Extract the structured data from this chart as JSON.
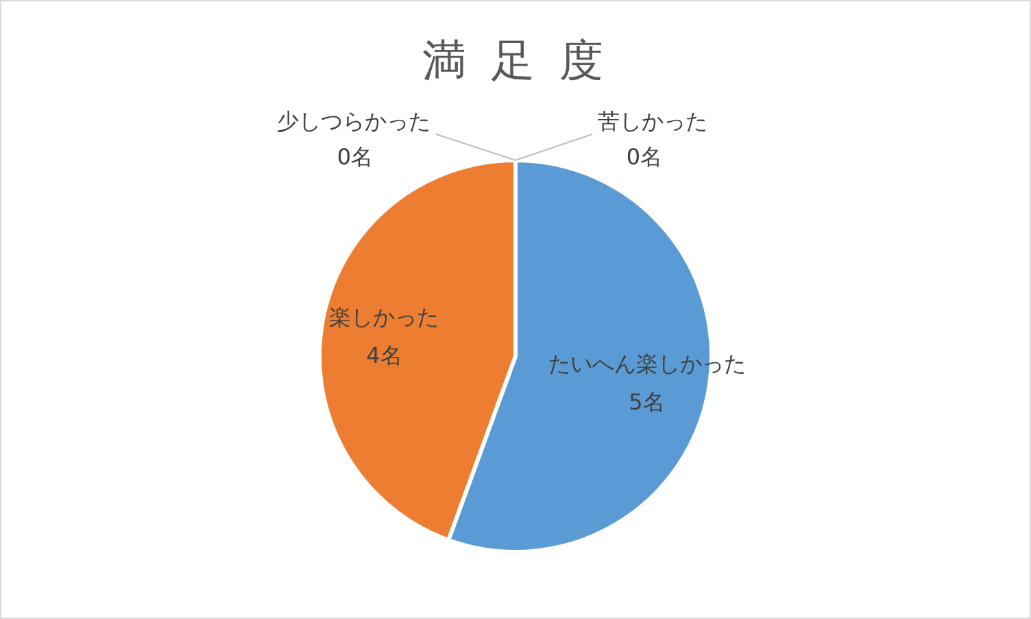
{
  "chart_data": {
    "type": "pie",
    "title": "満 足 度",
    "categories": [
      "たいへん楽しかった",
      "楽しかった",
      "少しつらかった",
      "苦しかった"
    ],
    "values": [
      5,
      4,
      0,
      0
    ],
    "colors": [
      "#5b9bd5",
      "#ed7d31",
      "#a5a5a5",
      "#ffc000"
    ],
    "value_labels": [
      "5名",
      "4名",
      "0名",
      "0名"
    ]
  }
}
